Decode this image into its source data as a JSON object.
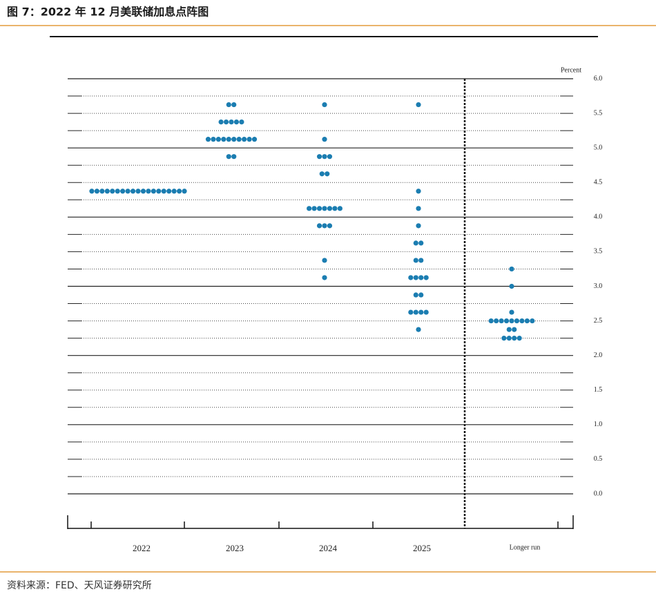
{
  "header": {
    "title": "图 7：2022 年 12 月美联储加息点阵图"
  },
  "chart_data": {
    "type": "dot",
    "ylabel": "Percent",
    "categories": [
      "2022",
      "2023",
      "2024",
      "2025",
      "Longer run"
    ],
    "color": "#1b7db1",
    "levels": [
      [
        {
          "rate": 4.375,
          "count": 19
        }
      ],
      [
        {
          "rate": 5.625,
          "count": 2
        },
        {
          "rate": 5.375,
          "count": 5
        },
        {
          "rate": 5.125,
          "count": 10
        },
        {
          "rate": 4.875,
          "count": 2
        }
      ],
      [
        {
          "rate": 5.625,
          "count": 1
        },
        {
          "rate": 5.125,
          "count": 1
        },
        {
          "rate": 4.875,
          "count": 3
        },
        {
          "rate": 4.625,
          "count": 2
        },
        {
          "rate": 4.125,
          "count": 7
        },
        {
          "rate": 3.875,
          "count": 3
        },
        {
          "rate": 3.375,
          "count": 1
        },
        {
          "rate": 3.125,
          "count": 1
        }
      ],
      [
        {
          "rate": 5.625,
          "count": 1
        },
        {
          "rate": 4.375,
          "count": 1
        },
        {
          "rate": 4.125,
          "count": 1
        },
        {
          "rate": 3.875,
          "count": 1
        },
        {
          "rate": 3.625,
          "count": 2
        },
        {
          "rate": 3.375,
          "count": 2
        },
        {
          "rate": 3.125,
          "count": 4
        },
        {
          "rate": 2.875,
          "count": 2
        },
        {
          "rate": 2.625,
          "count": 4
        },
        {
          "rate": 2.375,
          "count": 1
        }
      ],
      [
        {
          "rate": 3.25,
          "count": 1
        },
        {
          "rate": 3.0,
          "count": 1
        },
        {
          "rate": 2.625,
          "count": 1
        },
        {
          "rate": 2.5,
          "count": 9
        },
        {
          "rate": 2.375,
          "count": 2
        },
        {
          "rate": 2.25,
          "count": 4
        }
      ]
    ],
    "ylim": [
      0,
      6
    ],
    "yticks": [
      {
        "value": 0,
        "label": "0.0"
      },
      {
        "value": 0.5,
        "label": "0.5"
      },
      {
        "value": 1,
        "label": "1.0"
      },
      {
        "value": 1.5,
        "label": "1.5"
      },
      {
        "value": 2,
        "label": "2.0"
      },
      {
        "value": 2.5,
        "label": "2.5"
      },
      {
        "value": 3,
        "label": "3.0"
      },
      {
        "value": 3.5,
        "label": "3.5"
      },
      {
        "value": 4,
        "label": "4.0"
      },
      {
        "value": 4.5,
        "label": "4.5"
      },
      {
        "value": 5,
        "label": "5.0"
      },
      {
        "value": 5.5,
        "label": "5.5"
      },
      {
        "value": 6,
        "label": "6.0"
      }
    ],
    "minor_yticks": [
      0.25,
      0.75,
      1.25,
      1.75,
      2.25,
      2.75,
      3.25,
      3.75,
      4.25,
      4.75,
      5.25,
      5.75
    ],
    "grid": true
  },
  "footer": {
    "source": "资料来源：FED、天风证券研究所"
  }
}
